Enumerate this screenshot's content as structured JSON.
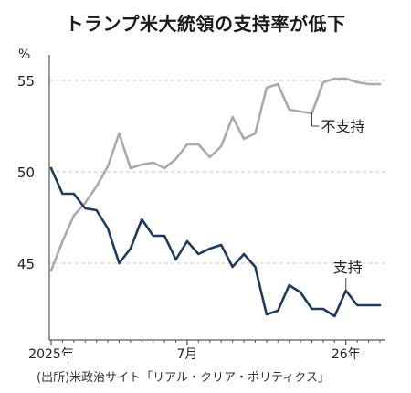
{
  "title": "トランプ米大統領の支持率が低下",
  "source": "(出所)米政治サイト「リアル・クリア・ポリティクス」",
  "chart_data": {
    "type": "line",
    "title": "トランプ米大統領の支持率が低下",
    "ylabel": "%",
    "ylim": [
      40.8,
      56.4
    ],
    "yticks": [
      45,
      50,
      55
    ],
    "xlim": [
      0,
      34
    ],
    "xtick_labels": [
      {
        "pos": 0,
        "label": "2025年"
      },
      {
        "pos": 12,
        "label": "7月"
      },
      {
        "pos": 26,
        "label": "26年"
      }
    ],
    "grid": true,
    "colors": {
      "approve": "#1f3a5f",
      "disapprove": "#aaaaaa"
    },
    "x": [
      0,
      1,
      2,
      3,
      4,
      5,
      6,
      7,
      8,
      9,
      10,
      11,
      12,
      13,
      14,
      15,
      16,
      17,
      18,
      19,
      20,
      21,
      22,
      23,
      24,
      25,
      26,
      27,
      28,
      29,
      30,
      31,
      32,
      33
    ],
    "series": [
      {
        "name": "不支持",
        "key": "disapprove",
        "values": [
          44.6,
          46.2,
          47.6,
          48.3,
          49.2,
          50.3,
          52.1,
          50.2,
          50.4,
          50.5,
          50.2,
          50.7,
          51.5,
          51.5,
          50.8,
          51.4,
          53.0,
          51.8,
          52.1,
          54.6,
          54.8,
          53.4,
          53.3,
          53.2,
          54.9,
          55.1,
          55.1,
          54.9,
          54.8,
          54.8,
          54.8,
          54.8,
          54.8,
          54.8
        ]
      },
      {
        "name": "支持",
        "key": "approve",
        "values": [
          50.2,
          48.8,
          48.8,
          48.0,
          47.9,
          46.9,
          45.0,
          45.8,
          47.4,
          46.5,
          46.5,
          45.2,
          46.2,
          45.5,
          45.8,
          46.0,
          44.8,
          45.5,
          44.8,
          42.2,
          42.4,
          43.8,
          43.4,
          42.5,
          42.5,
          42.1,
          43.5,
          42.7,
          42.7,
          42.7,
          42.7,
          42.7,
          42.7,
          42.7
        ]
      }
    ],
    "annotations": [
      {
        "text": "不支持",
        "series": "disapprove"
      },
      {
        "text": "支持",
        "series": "approve"
      }
    ]
  }
}
